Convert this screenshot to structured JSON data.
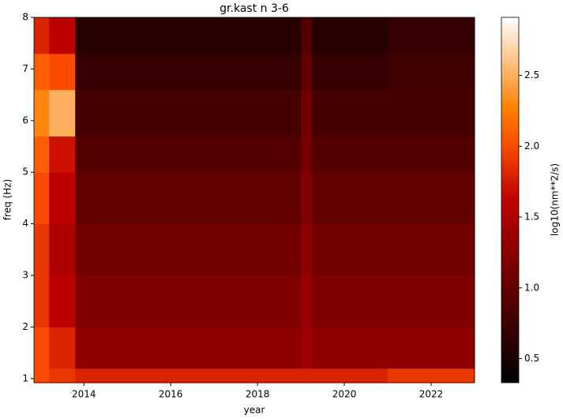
{
  "chart_data": {
    "type": "heatmap",
    "title": "gr.kast n 3-6",
    "x_label": "year",
    "y_label": "freq (Hz)",
    "colorbar_label": "log10(nm**2/s)",
    "colormap": "gist_heat",
    "xbins": [
      2012.85,
      2013.2,
      2013.8,
      2015,
      2017,
      2019,
      2019.25,
      2021,
      2023.0
    ],
    "ybins": [
      0.92,
      1.2,
      2,
      3,
      4,
      5,
      5.7,
      6.6,
      7.3,
      8
    ],
    "z": [
      [
        2.0,
        1.9,
        1.8,
        1.8,
        1.8,
        1.8,
        1.8,
        1.9
      ],
      [
        2.0,
        1.8,
        1.3,
        1.3,
        1.3,
        1.4,
        1.3,
        1.3
      ],
      [
        1.9,
        1.6,
        1.2,
        1.2,
        1.2,
        1.35,
        1.2,
        1.2
      ],
      [
        1.9,
        1.5,
        1.1,
        1.1,
        1.1,
        1.3,
        1.1,
        1.1
      ],
      [
        2.0,
        1.6,
        1.0,
        1.0,
        1.0,
        1.2,
        1.0,
        1.0
      ],
      [
        2.1,
        1.7,
        0.9,
        0.9,
        0.9,
        1.15,
        0.9,
        0.9
      ],
      [
        2.3,
        2.5,
        0.8,
        0.8,
        0.8,
        1.1,
        0.8,
        0.8
      ],
      [
        2.1,
        2.0,
        0.7,
        0.7,
        0.7,
        1.0,
        0.7,
        0.75
      ],
      [
        1.8,
        1.6,
        0.6,
        0.6,
        0.6,
        0.9,
        0.6,
        0.7
      ]
    ],
    "xlim": [
      2012.85,
      2023.0
    ],
    "xticks": [
      2014,
      2016,
      2018,
      2020,
      2022
    ],
    "ylim": [
      0.92,
      8
    ],
    "yticks": [
      1,
      2,
      3,
      4,
      5,
      6,
      7,
      8
    ],
    "clim": [
      0.33,
      2.91
    ],
    "cticks": [
      0.5,
      {
        "value": 1,
        "label": "1.0"
      },
      1.5,
      {
        "value": 2,
        "label": "2.0"
      },
      2.5
    ]
  }
}
